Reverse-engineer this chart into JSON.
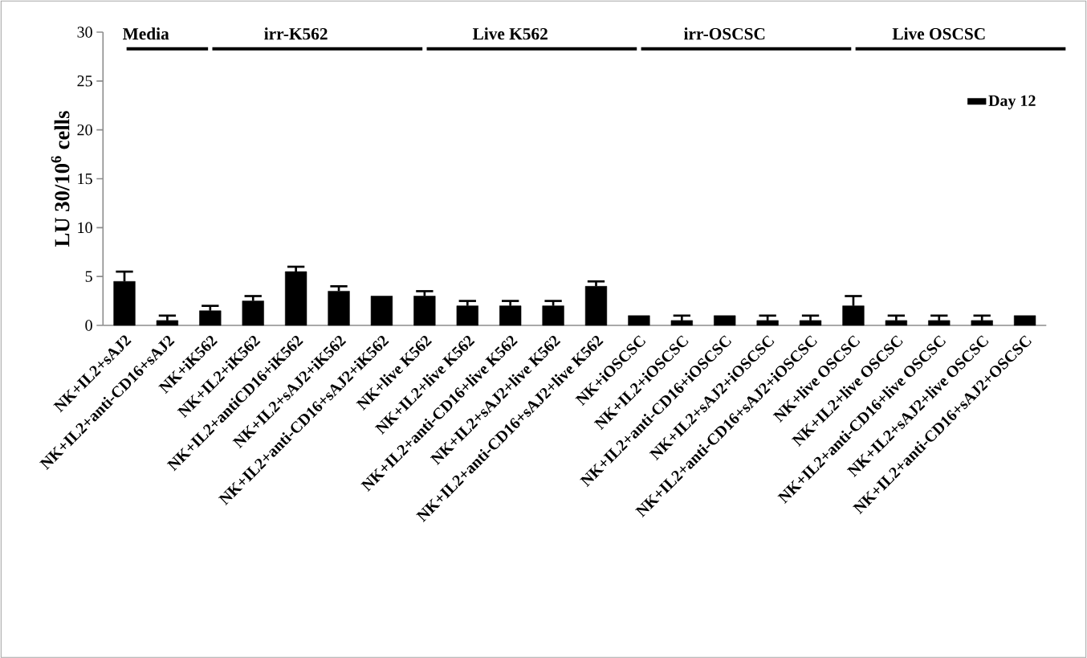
{
  "chart_data": {
    "type": "bar",
    "ylabel": "LU 30/10$^{6}$ cells",
    "categories": [
      "NK+IL2+sAJ2",
      "NK+IL2+anti-CD16+sAJ2",
      "NK+iK562",
      "NK+IL2+iK562",
      "NK+IL2+antiCD16+iK562",
      "NK+IL2+sAJ2+iK562",
      "NK+IL2+anti-CD16+sAJ2+iK562",
      "NK+live K562",
      "NK+IL2+live K562",
      "NK+IL2+anti-CD16+live K562",
      "NK+IL2+sAJ2+live K562",
      "NK+IL2+anti-CD16+sAJ2+live K562",
      "NK+iOSCSC",
      "NK+IL2+iOSCSC",
      "NK+IL2+anti-CD16+iOSCSC",
      "NK+IL2+sAJ2+iOSCSC",
      "NK+IL2+anti-CD16+sAJ2+iOSCSC",
      "NK+live OSCSC",
      "NK+IL2+live OSCSC",
      "NK+IL2+anti-CD16+live OSCSC",
      "NK+IL2+sAJ2+live OSCSC",
      "NK+IL2+anti-CD16+sAJ2+OSCSC"
    ],
    "series": [
      {
        "name": "Day 12",
        "color": "#000000",
        "values": [
          4.5,
          0.5,
          1.5,
          2.5,
          5.5,
          3.5,
          3,
          3,
          2,
          2,
          2,
          4,
          1,
          0.5,
          1,
          0.5,
          0.5,
          2,
          0.5,
          0.5,
          0.5,
          1
        ],
        "errors": [
          1,
          0.5,
          0.5,
          0.5,
          0.5,
          0.5,
          null,
          0.5,
          0.5,
          0.5,
          0.5,
          0.5,
          null,
          0.5,
          null,
          0.5,
          0.5,
          1,
          0.5,
          0.5,
          0.5,
          null
        ]
      }
    ],
    "ylim": [
      0,
      30
    ],
    "yticks": [
      0,
      5,
      10,
      15,
      20,
      25,
      30
    ],
    "legend": "top right",
    "annotations": [
      "Media",
      "irr-K562",
      "Live K562",
      "irr-OSCSC",
      "Live OSCSC"
    ]
  }
}
